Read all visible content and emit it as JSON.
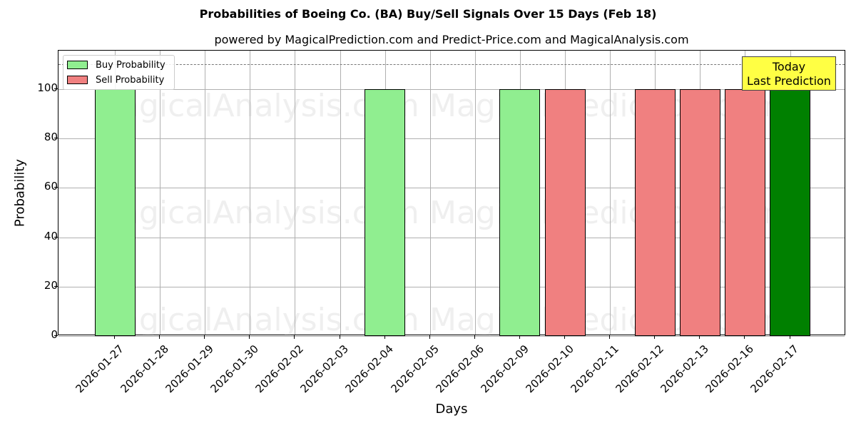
{
  "chart_data": {
    "type": "bar",
    "title": "Probabilities of Boeing Co. (BA) Buy/Sell Signals Over 15 Days (Feb 18)",
    "subtitle": "powered by MagicalPrediction.com and Predict-Price.com and MagicalAnalysis.com",
    "xlabel": "Days",
    "ylabel": "Probability",
    "ylim": [
      0,
      115
    ],
    "yticks": [
      0,
      20,
      40,
      60,
      80,
      100
    ],
    "grid": true,
    "legend_position": "upper left",
    "categories": [
      "2026-01-27",
      "2026-01-28",
      "2026-01-29",
      "2026-01-30",
      "2026-02-02",
      "2026-02-03",
      "2026-02-04",
      "2026-02-05",
      "2026-02-06",
      "2026-02-09",
      "2026-02-10",
      "2026-02-11",
      "2026-02-12",
      "2026-02-13",
      "2026-02-16",
      "2026-02-17"
    ],
    "series": [
      {
        "name": "Buy Probability",
        "color": "#90ee90",
        "values": [
          100,
          0,
          0,
          0,
          0,
          0,
          100,
          0,
          0,
          100,
          0,
          0,
          0,
          0,
          0,
          100
        ]
      },
      {
        "name": "Sell Probability",
        "color": "#f08080",
        "values": [
          0,
          0,
          0,
          0,
          0,
          0,
          0,
          0,
          0,
          0,
          100,
          0,
          100,
          100,
          100,
          0
        ]
      }
    ],
    "highlight": {
      "category": "2026-02-17",
      "color": "#008000",
      "value": 100
    },
    "reference_line": {
      "y": 110,
      "style": "dashed"
    },
    "annotations": [
      "Today\nLast Prediction"
    ],
    "watermarks": [
      "MagicalAnalysis.com",
      "MagicalPrediction.com"
    ]
  },
  "labels": {
    "title": "Probabilities of Boeing Co. (BA) Buy/Sell Signals Over 15 Days (Feb 18)",
    "subtitle": "powered by MagicalPrediction.com and Predict-Price.com and MagicalAnalysis.com",
    "xlabel": "Days",
    "ylabel": "Probability",
    "legend_buy": "Buy Probability",
    "legend_sell": "Sell Probability",
    "annot_line1": "Today",
    "annot_line2": "Last Prediction",
    "wm1": "MagicalAnalysis.com",
    "wm2": "MagicalPrediction.com"
  },
  "colors": {
    "buy": "#90ee90",
    "sell": "#f08080",
    "today": "#008000",
    "annotation": "#ffff44"
  }
}
